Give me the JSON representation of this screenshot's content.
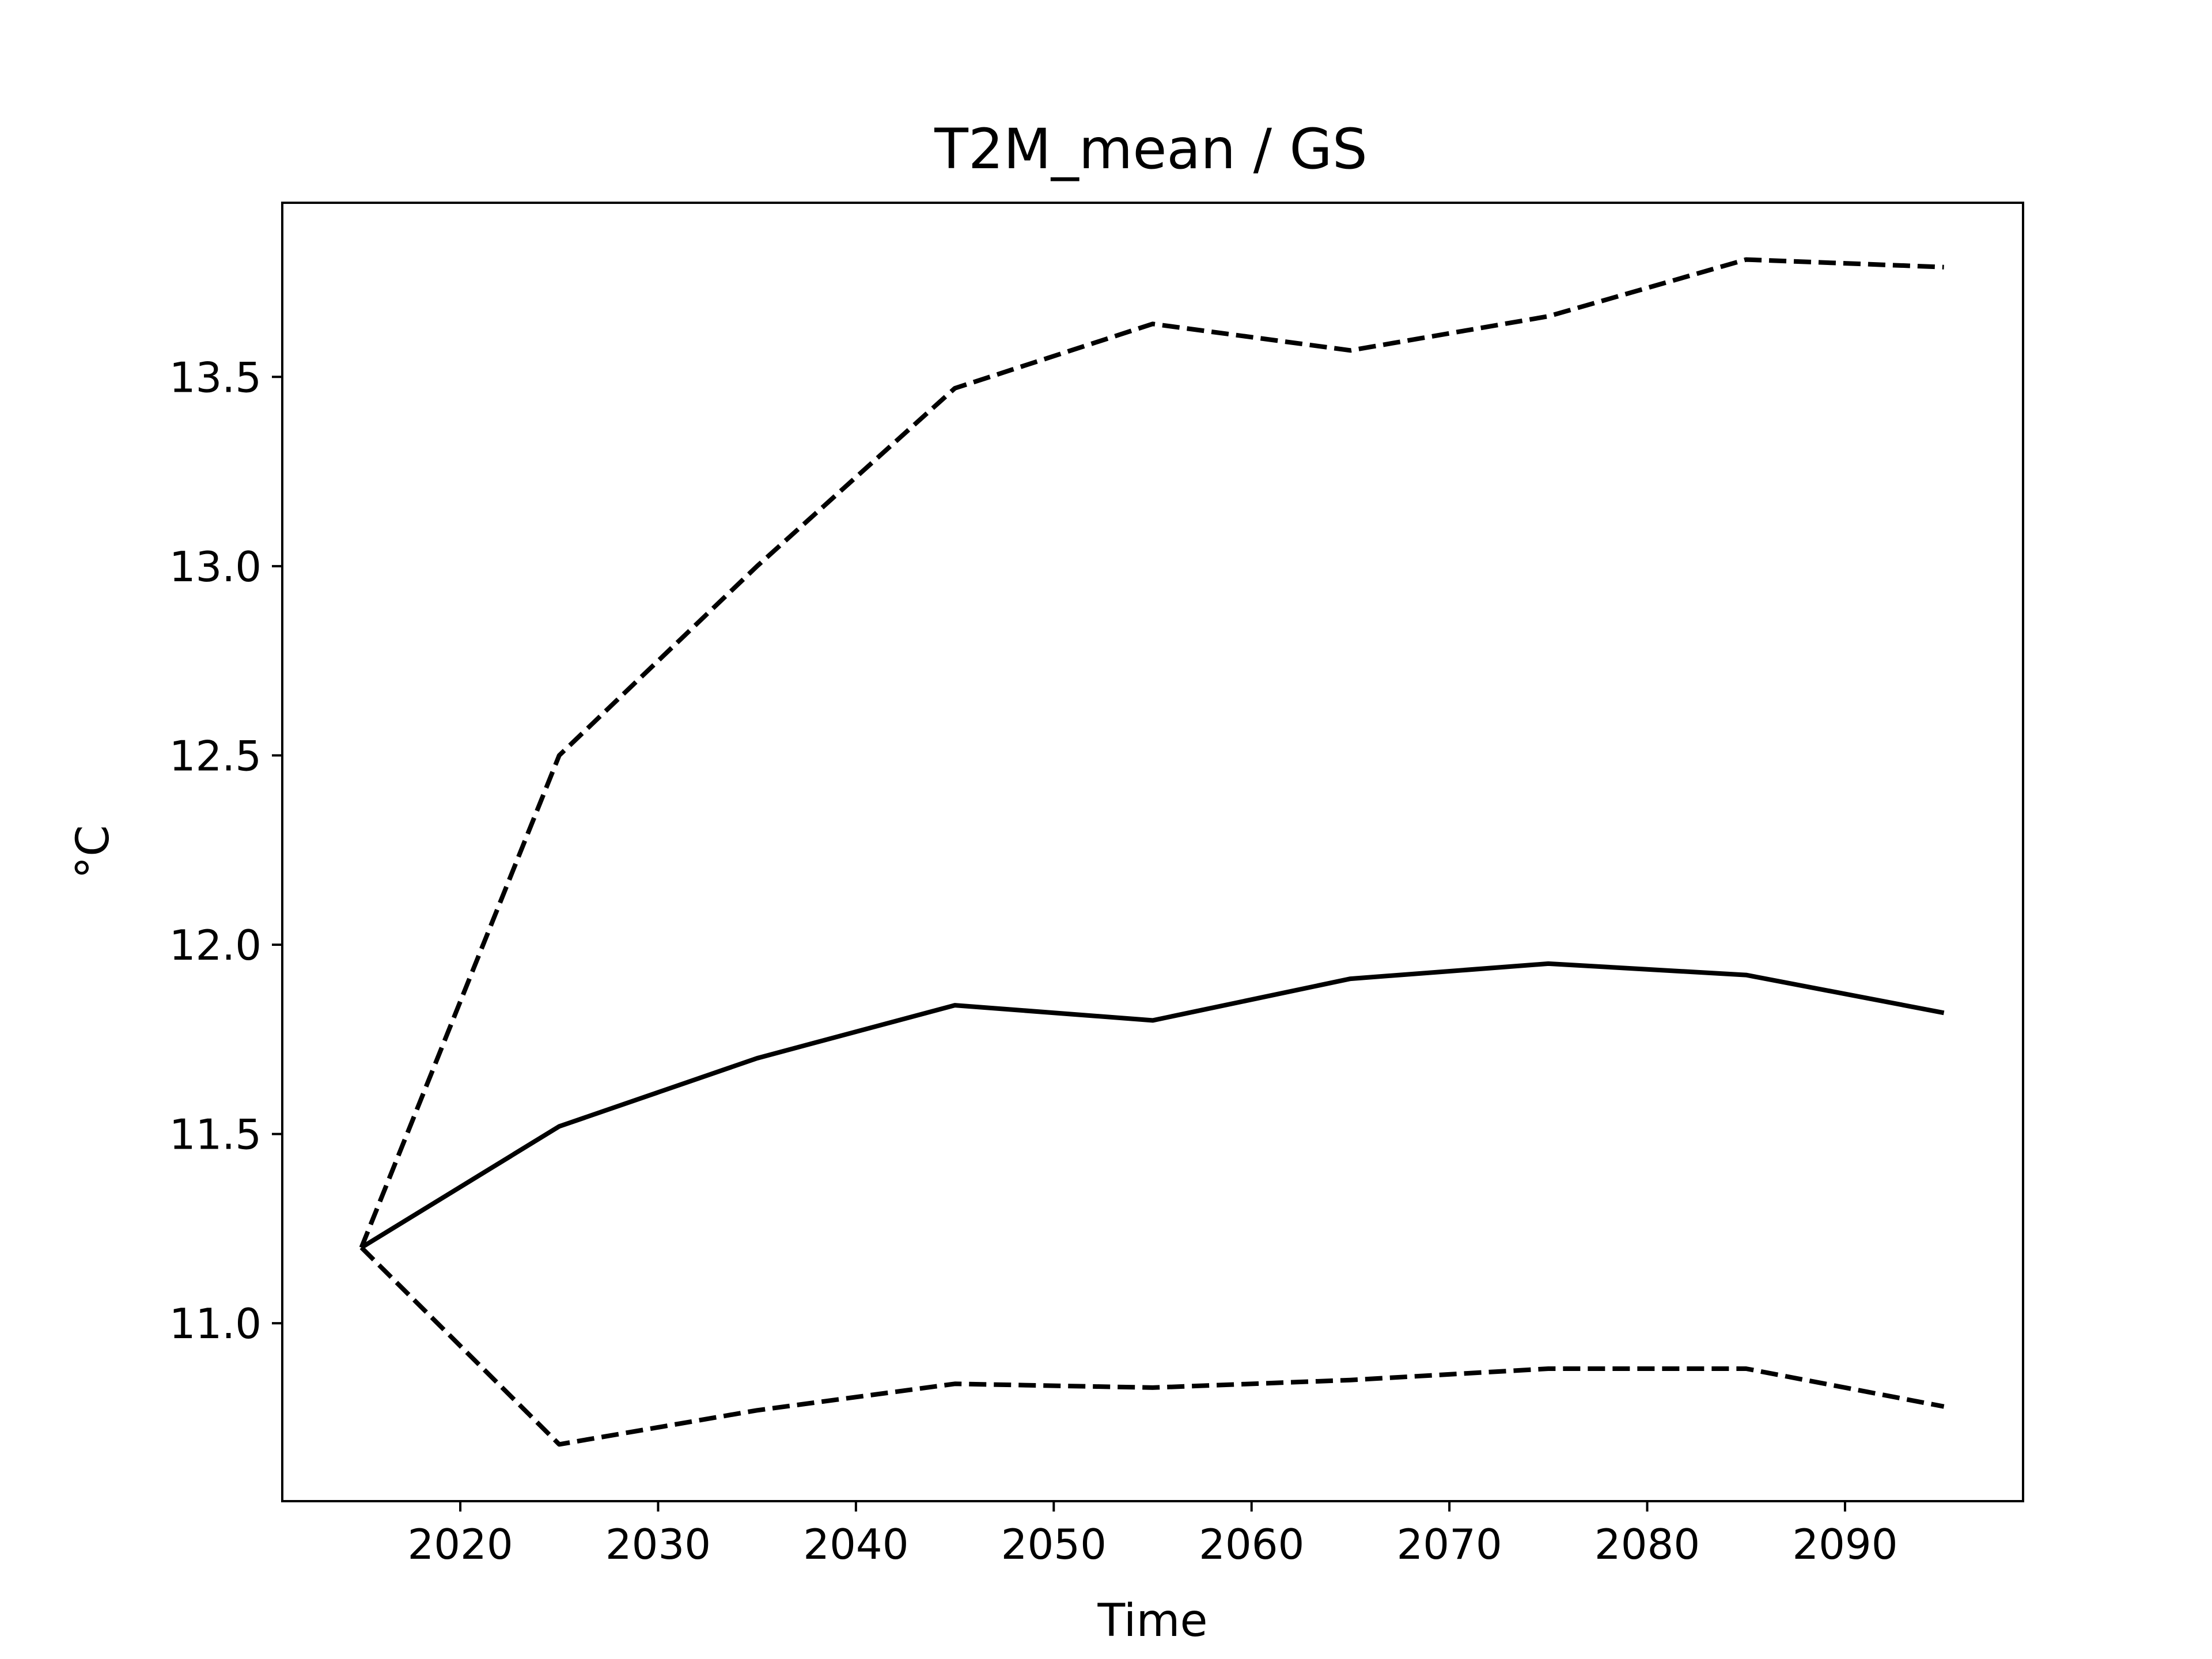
{
  "chart_data": {
    "type": "line",
    "title": "T2M_mean / GS",
    "xlabel": "Time",
    "ylabel": "°C",
    "xlim": [
      2011,
      2099
    ],
    "ylim": [
      10.53,
      13.96
    ],
    "x_ticks": [
      2020,
      2030,
      2040,
      2050,
      2060,
      2070,
      2080,
      2090
    ],
    "y_ticks": [
      11.0,
      11.5,
      12.0,
      12.5,
      13.0,
      13.5
    ],
    "y_tick_labels": [
      "11.0",
      "11.5",
      "12.0",
      "12.5",
      "13.0",
      "13.5"
    ],
    "grid": false,
    "x": [
      2015,
      2025,
      2035,
      2045,
      2055,
      2065,
      2075,
      2085,
      2095
    ],
    "series": [
      {
        "style": "dashed",
        "color": "#000000",
        "values": [
          11.2,
          12.5,
          13.0,
          13.47,
          13.64,
          13.57,
          13.66,
          13.81,
          13.79
        ]
      },
      {
        "style": "solid",
        "color": "#000000",
        "values": [
          11.2,
          11.52,
          11.7,
          11.84,
          11.8,
          11.91,
          11.95,
          11.92,
          11.82
        ]
      },
      {
        "style": "dashed",
        "color": "#000000",
        "values": [
          11.2,
          10.68,
          10.77,
          10.84,
          10.83,
          10.85,
          10.88,
          10.88,
          10.78
        ]
      }
    ]
  }
}
